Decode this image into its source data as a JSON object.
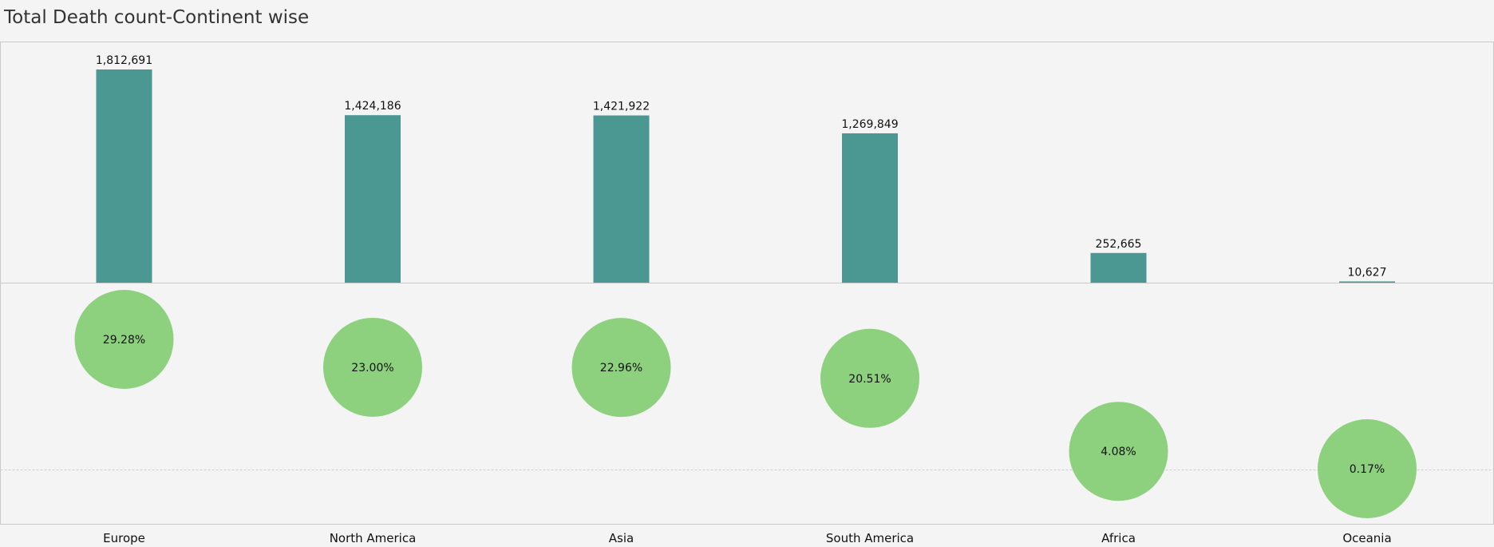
{
  "page": {
    "title": "Total Death count-Continent wise"
  },
  "chart_data": [
    {
      "type": "bar",
      "title": "Total Death count-Continent wise",
      "categories": [
        "Europe",
        "North America",
        "Asia",
        "South America",
        "Africa",
        "Oceania"
      ],
      "values": [
        1812691,
        1424186,
        1421922,
        1269849,
        252665,
        10627
      ],
      "value_labels": [
        "1,812,691",
        "1,424,186",
        "1,421,922",
        "1,269,849",
        "252,665",
        "10,627"
      ],
      "ylim": [
        0,
        2000000
      ],
      "grid": false,
      "color": "#4a9891"
    },
    {
      "type": "scatter",
      "marker": "circle",
      "categories": [
        "Europe",
        "North America",
        "Asia",
        "South America",
        "Africa",
        "Oceania"
      ],
      "values": [
        29.28,
        23.0,
        22.96,
        20.51,
        4.08,
        0.17
      ],
      "value_labels": [
        "29.28%",
        "23.00%",
        "22.96%",
        "20.51%",
        "4.08%",
        "0.17%"
      ],
      "ylim": [
        -15,
        40
      ],
      "reference_line": 0,
      "color": "#8dd17e"
    }
  ]
}
